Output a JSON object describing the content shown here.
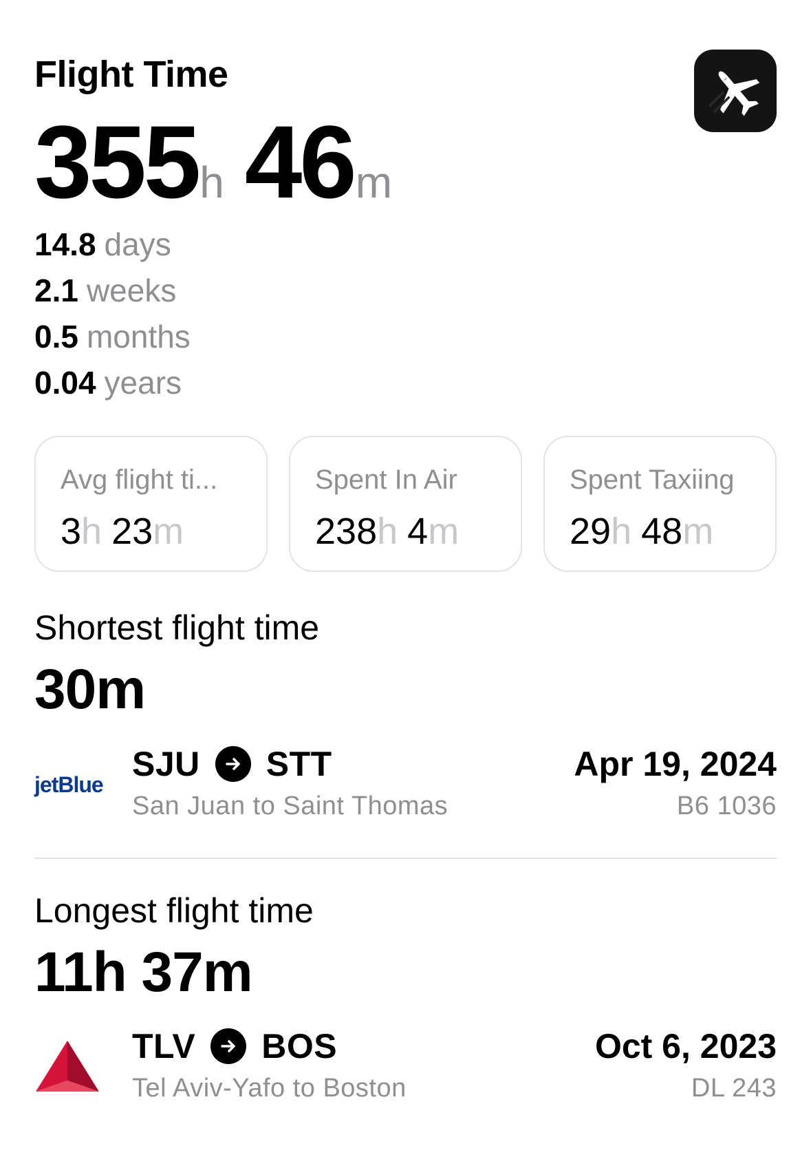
{
  "header": {
    "title": "Flight Time"
  },
  "total": {
    "hours": "355",
    "hours_unit": "h",
    "minutes": "46",
    "minutes_unit": "m"
  },
  "conversions": [
    {
      "value": "14.8",
      "unit": "days"
    },
    {
      "value": "2.1",
      "unit": "weeks"
    },
    {
      "value": "0.5",
      "unit": "months"
    },
    {
      "value": "0.04",
      "unit": "years"
    }
  ],
  "cards": [
    {
      "label": "Avg flight ti...",
      "hours": "3",
      "minutes": "23"
    },
    {
      "label": "Spent In Air",
      "hours": "238",
      "minutes": "4"
    },
    {
      "label": "Spent Taxiing",
      "hours": "29",
      "minutes": "48"
    }
  ],
  "units": {
    "h": "h",
    "m": "m"
  },
  "shortest": {
    "label": "Shortest flight time",
    "value": "30m",
    "airline": "jetBlue",
    "from": "SJU",
    "to": "STT",
    "description": "San Juan to Saint Thomas",
    "date": "Apr 19, 2024",
    "flight_number": "B6 1036"
  },
  "longest": {
    "label": "Longest flight time",
    "value": "11h 37m",
    "airline_icon": "delta-logo-icon",
    "from": "TLV",
    "to": "BOS",
    "description": "Tel Aviv-Yafo to Boston",
    "date": "Oct 6, 2023",
    "flight_number": "DL 243"
  },
  "colors": {
    "secondary_text": "#8e8e93",
    "unit_light": "#c7c7cc",
    "jetblue": "#0b3a8a",
    "delta_red": "#d4143a"
  }
}
